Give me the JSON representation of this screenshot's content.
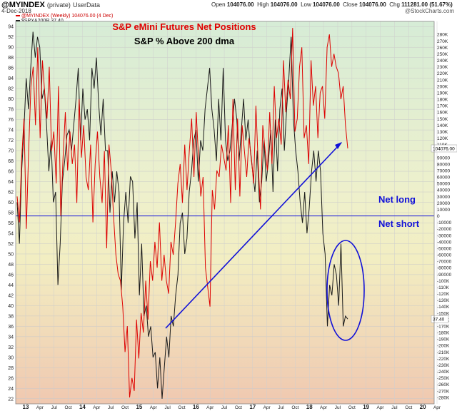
{
  "header": {
    "symbol": "@MYINDEX",
    "privacy": "(private)",
    "source": "UserData",
    "date": "4-Dec-2018",
    "brand": "@StockCharts.com",
    "ohlc": {
      "open_label": "Open",
      "open": "104076.00",
      "high_label": "High",
      "high": "104076.00",
      "low_label": "Low",
      "low": "104076.00",
      "close_label": "Close",
      "close": "104076.00",
      "chg_label": "Chg",
      "chg": "111281.00 (51.67%)"
    }
  },
  "legend": {
    "series1": "@MYINDEX (Weekly) 104076.00 (4 Dec)",
    "series2": "$SPXA200R 37.40"
  },
  "colors": {
    "net_positions": "#dd0000",
    "pct_above_200": "#1a1a1a",
    "annotation": "#0000dd",
    "title": "#e00000",
    "bg_top": "#d6ecd6",
    "bg_mid": "#f2eec2",
    "bg_bottom": "#f0c8b0"
  },
  "annotations": {
    "title": "S&P eMini Futures Net Positions",
    "subtitle": "S&P % Above 200 dma",
    "net_long": "Net long",
    "net_short": "Net short"
  },
  "chart_data": {
    "type": "line",
    "x_tick_labels": [
      "13",
      "Apr",
      "Jul",
      "Oct",
      "14",
      "Apr",
      "Jul",
      "Oct",
      "15",
      "Apr",
      "Jul",
      "Oct",
      "16",
      "Apr",
      "Jul",
      "Oct",
      "17",
      "Apr",
      "Jul",
      "Oct",
      "18",
      "Apr",
      "Jul",
      "Oct",
      "19",
      "Apr",
      "Jul",
      "Oct",
      "20",
      "Apr"
    ],
    "left_axis": {
      "ticks": [
        22,
        24,
        26,
        28,
        30,
        32,
        34,
        36,
        38,
        40,
        42,
        44,
        46,
        48,
        50,
        52,
        54,
        56,
        58,
        60,
        62,
        64,
        66,
        68,
        70,
        72,
        74,
        76,
        78,
        80,
        82,
        84,
        86,
        88,
        90,
        92,
        94
      ],
      "ylim": [
        21,
        95
      ]
    },
    "right_axis": {
      "ticks": [
        "280K",
        "270K",
        "260K",
        "250K",
        "240K",
        "230K",
        "220K",
        "210K",
        "200K",
        "190K",
        "180K",
        "170K",
        "160K",
        "150K",
        "140K",
        "130K",
        "120K",
        "110K",
        "90000",
        "80000",
        "70000",
        "60000",
        "50000",
        "40000",
        "30000",
        "20000",
        "10000",
        "0",
        "-10000",
        "-20000",
        "-30000",
        "-40000",
        "-50000",
        "-60000",
        "-70000",
        "-80000",
        "-90000",
        "-100K",
        "-110K",
        "-120K",
        "-130K",
        "-140K",
        "-150K",
        "-160K",
        "-170K",
        "-180K",
        "-190K",
        "-200K",
        "-210K",
        "-220K",
        "-230K",
        "-240K",
        "-250K",
        "-260K",
        "-270K",
        "-280K"
      ],
      "ylim": [
        -290000,
        300000
      ],
      "last_value_tag": "104076.00",
      "pct_tag": "37.40"
    },
    "series": [
      {
        "name": "@MYINDEX",
        "axis": "right",
        "values": [
          30000,
          -10000,
          90000,
          150000,
          -20000,
          100000,
          200000,
          230000,
          140000,
          260000,
          120000,
          240000,
          190000,
          150000,
          230000,
          100000,
          130000,
          50000,
          200000,
          0,
          90000,
          160000,
          70000,
          130000,
          80000,
          110000,
          20000,
          180000,
          90000,
          140000,
          60000,
          40000,
          110000,
          -10000,
          80000,
          130000,
          60000,
          20000,
          100000,
          -50000,
          110000,
          70000,
          0,
          -60000,
          -90000,
          -100000,
          -140000,
          -210000,
          -170000,
          -280000,
          -250000,
          -270000,
          -160000,
          -220000,
          -150000,
          -180000,
          -100000,
          -160000,
          -70000,
          -100000,
          -40000,
          -80000,
          -10000,
          -100000,
          -60000,
          -100000,
          -120000,
          -40000,
          -60000,
          -10000,
          50000,
          80000,
          20000,
          110000,
          40000,
          100000,
          150000,
          60000,
          160000,
          90000,
          30000,
          60000,
          -80000,
          -110000,
          -140000,
          40000,
          10000,
          70000,
          60000,
          110000,
          90000,
          70000,
          140000,
          20000,
          180000,
          40000,
          150000,
          30000,
          140000,
          100000,
          60000,
          120000,
          90000,
          50000,
          170000,
          80000,
          10000,
          140000,
          100000,
          70000,
          160000,
          80000,
          200000,
          120000,
          150000,
          110000,
          240000,
          160000,
          210000,
          180000,
          290000,
          130000,
          150000,
          230000,
          260000,
          120000,
          140000,
          80000,
          240000,
          170000,
          200000,
          120000,
          190000,
          200000,
          150000,
          260000,
          280000,
          230000,
          250000,
          230000,
          220000,
          180000,
          200000,
          140000,
          104076
        ]
      },
      {
        "name": "$SPXA200R",
        "axis": "left",
        "values": [
          60,
          52,
          66,
          74,
          84,
          78,
          86,
          93,
          88,
          92,
          90,
          80,
          82,
          75,
          66,
          72,
          60,
          62,
          44,
          52,
          64,
          68,
          73,
          74,
          70,
          75,
          80,
          86,
          72,
          82,
          76,
          78,
          72,
          86,
          82,
          88,
          79,
          73,
          80,
          70,
          70,
          58,
          66,
          60,
          66,
          62,
          43,
          56,
          62,
          56,
          65,
          64,
          53,
          60,
          42,
          52,
          38,
          40,
          34,
          36,
          30,
          31,
          24,
          30,
          22,
          28,
          34,
          30,
          38,
          36,
          42,
          46,
          56,
          58,
          50,
          53,
          62,
          66,
          72,
          74,
          64,
          72,
          70,
          78,
          82,
          86,
          78,
          74,
          68,
          80,
          72,
          86,
          72,
          68,
          70,
          75,
          80,
          76,
          68,
          74,
          80,
          72,
          76,
          70,
          66,
          62,
          70,
          60,
          64,
          72,
          64,
          68,
          74,
          62,
          76,
          66,
          78,
          82,
          70,
          78,
          84,
          92,
          76,
          70,
          66,
          60,
          56,
          62,
          54,
          59,
          66,
          70,
          64,
          70,
          66,
          54,
          50,
          36,
          44,
          42,
          48,
          46,
          40,
          52,
          36,
          38,
          37.4
        ]
      }
    ],
    "reference_line": {
      "axis": "right",
      "value": 0
    },
    "grid": true,
    "legend": "top-left"
  }
}
